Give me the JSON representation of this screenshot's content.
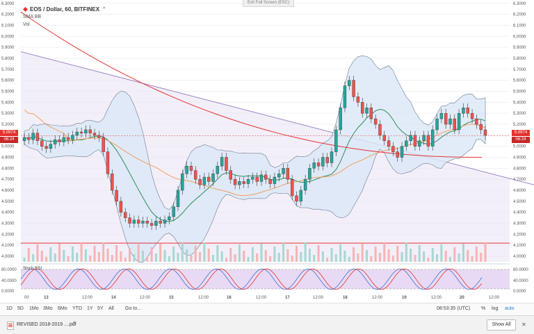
{
  "app": {
    "exit_fullscreen": "Exit Full Screen (ESC)"
  },
  "legend": {
    "symbol": "EOS / Dollar, 60, BITFINEX",
    "indicators": [
      "SMA BB",
      "Vol"
    ],
    "toggle": "^"
  },
  "price_axis": {
    "left_labels": [
      "6.3000",
      "6.2000",
      "6.1000",
      "6.0000",
      "5.9000",
      "5.8000",
      "5.7000",
      "5.6000",
      "5.5000",
      "5.4000",
      "5.3000",
      "5.2000",
      "5.0974",
      "5.0000",
      "4.9000",
      "4.8000",
      "4.7000",
      "4.6000",
      "4.5000",
      "4.4000",
      "4.3000",
      "4.2000",
      "4.1000",
      "4.0000"
    ],
    "right_labels": [
      "6.3000",
      "6.2000",
      "6.1000",
      "6.0000",
      "5.9000",
      "5.8000",
      "5.7000",
      "5.6000",
      "5.5000",
      "5.4000",
      "5.3000",
      "5.2000",
      "5.0974",
      "5.0000",
      "4.9000",
      "4.8000",
      "4.7000",
      "4.6000",
      "4.5000",
      "4.4000",
      "4.3000",
      "4.2000",
      "4.1000",
      "4.0000"
    ],
    "current_price": "5.0974",
    "countdown": "06:24",
    "current_color": "#e4322e"
  },
  "time_axis": [
    "00",
    "13",
    "12:00",
    "14",
    "12:00",
    "15",
    "12:00",
    "16",
    "12:00",
    "17",
    "12:00",
    "18",
    "12:00",
    "19",
    "12:00",
    "20",
    "12:00"
  ],
  "stoch_rsi": {
    "label": "Stoch RSI",
    "ticks": [
      "80.0000",
      "40.0000",
      "0.0000"
    ]
  },
  "toolbar": {
    "ranges": [
      "1D",
      "5D",
      "1Mo",
      "3Mo",
      "6Mo",
      "YTD",
      "1Y",
      "5Y",
      "All"
    ],
    "goto": "Go to...",
    "clock": "08:53:35 (UTC)",
    "percent": "%",
    "log": "log",
    "auto": "auto"
  },
  "download_bar": {
    "file": "REVISED 2018-2019 ....pdf",
    "show_all": "Show All",
    "close": "✕",
    "chevron": "^"
  },
  "colors": {
    "up": "#26a69a",
    "down": "#ef5350",
    "bb_fill": "#dbe7f6",
    "sma_long": "#e4322e",
    "sma_mid": "#f0a060",
    "bb_mid": "#2e8b57",
    "trend": "#9c7fc8",
    "stoch_k": "#3f6fd6",
    "stoch_d": "#e4322e"
  },
  "chart_data": {
    "type": "candlestick",
    "title": "EOS / Dollar, 60, BITFINEX",
    "ylim": [
      3.95,
      6.33
    ],
    "candles_close": [
      5.08,
      5.06,
      5.12,
      5.05,
      5.0,
      4.98,
      5.02,
      5.06,
      5.04,
      5.08,
      5.06,
      5.1,
      5.13,
      5.12,
      5.15,
      5.12,
      5.1,
      5.08,
      4.95,
      4.75,
      4.6,
      4.5,
      4.4,
      4.35,
      4.3,
      4.33,
      4.3,
      4.32,
      4.3,
      4.28,
      4.32,
      4.3,
      4.33,
      4.36,
      4.45,
      4.6,
      4.75,
      4.82,
      4.78,
      4.7,
      4.65,
      4.72,
      4.68,
      4.75,
      4.82,
      4.9,
      4.78,
      4.7,
      4.65,
      4.68,
      4.66,
      4.7,
      4.72,
      4.68,
      4.74,
      4.7,
      4.66,
      4.72,
      4.75,
      4.8,
      4.7,
      4.55,
      4.5,
      4.6,
      4.7,
      4.8,
      4.85,
      4.82,
      4.9,
      4.85,
      4.95,
      5.15,
      5.35,
      5.55,
      5.6,
      5.45,
      5.4,
      5.3,
      5.35,
      5.25,
      5.2,
      5.1,
      5.05,
      5.0,
      4.95,
      4.9,
      5.0,
      5.05,
      5.1,
      5.0,
      5.05,
      5.1,
      5.0,
      5.15,
      5.25,
      5.3,
      5.2,
      5.25,
      5.15,
      5.3,
      5.35,
      5.3,
      5.25,
      5.2,
      5.15,
      5.1
    ],
    "sma_long_ends": [
      6.22,
      4.9
    ],
    "trendline_ends": [
      5.86,
      4.7
    ],
    "bb_mid_range": [
      4.6,
      5.25
    ],
    "volume_level": "4.1200",
    "stoch_upper": "80.0000",
    "stoch_lower": "20.0000"
  }
}
